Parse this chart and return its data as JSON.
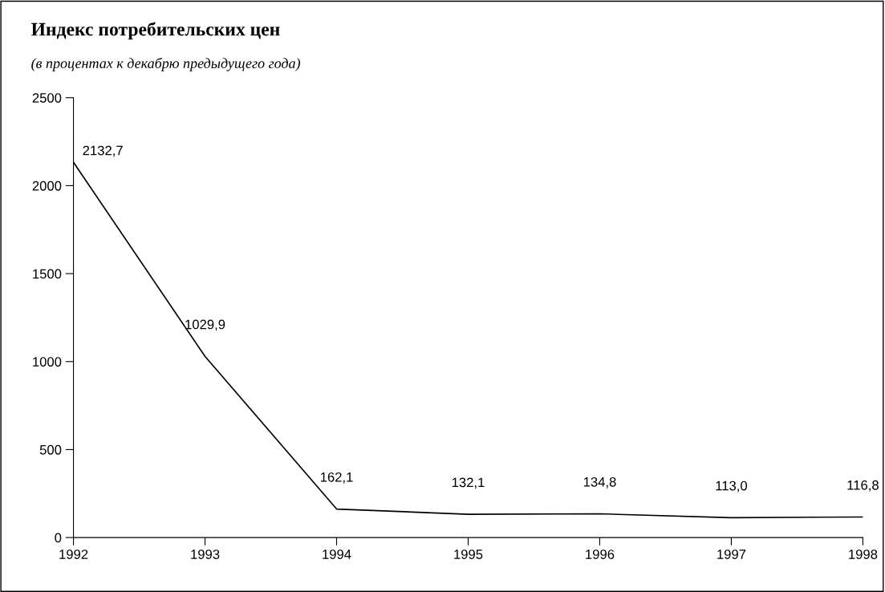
{
  "chart_data": {
    "type": "line",
    "title": "Индекс потребительских цен",
    "subtitle": "(в процентах к декабрю предыдущего года)",
    "categories": [
      "1992",
      "1993",
      "1994",
      "1995",
      "1996",
      "1997",
      "1998"
    ],
    "series": [
      {
        "color": "#000000",
        "values": [
          2132.7,
          1029.9,
          162.1,
          132.1,
          134.8,
          113.0,
          116.8
        ],
        "value_labels": [
          "2132,7",
          "1029,9",
          "162,1",
          "132,1",
          "134,8",
          "113,0",
          "116,8"
        ]
      }
    ],
    "ylim": [
      0,
      2500
    ],
    "yticks": [
      0,
      500,
      1000,
      1500,
      2000,
      2500
    ],
    "grid": false,
    "legend": false,
    "marker": "none",
    "line_style": "solid"
  }
}
